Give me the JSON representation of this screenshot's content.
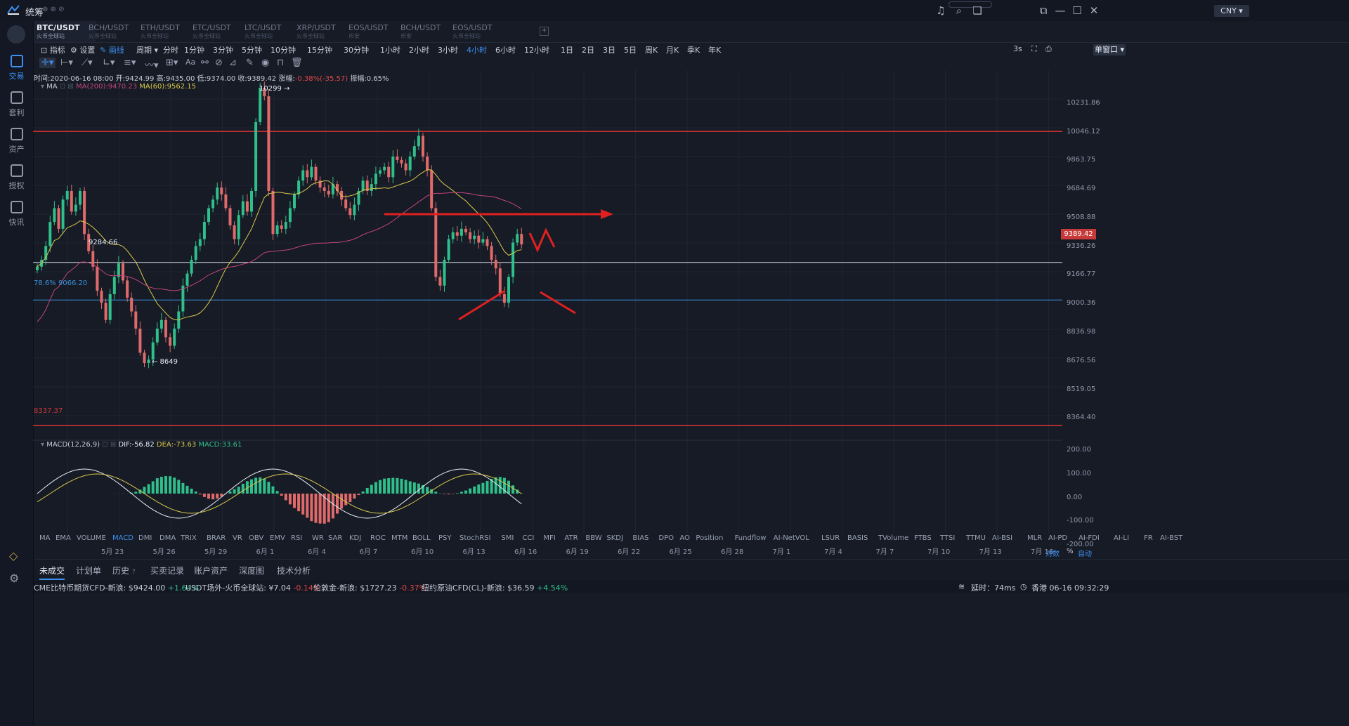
{
  "app": {
    "name": "统筹",
    "currency": "CNY"
  },
  "nav": [
    {
      "label": "交易",
      "icon": "trade-icon",
      "active": true
    },
    {
      "label": "套利",
      "icon": "arbitrage-icon"
    },
    {
      "label": "资产",
      "icon": "wallet-icon"
    },
    {
      "label": "授权",
      "icon": "key-icon"
    },
    {
      "label": "快讯",
      "icon": "news-icon"
    }
  ],
  "symbols": [
    {
      "name": "BTC/USDT",
      "sub": "火币全球站",
      "active": true
    },
    {
      "name": "BCH/USDT",
      "sub": "火币全球站"
    },
    {
      "name": "ETH/USDT",
      "sub": "火币全球站"
    },
    {
      "name": "ETC/USDT",
      "sub": "火币全球站"
    },
    {
      "name": "LTC/USDT",
      "sub": "火币全球站"
    },
    {
      "name": "XRP/USDT",
      "sub": "火币全球站"
    },
    {
      "name": "EOS/USDT",
      "sub": "币安"
    },
    {
      "name": "BCH/USDT",
      "sub": "币安"
    },
    {
      "name": "EOS/USDT",
      "sub": "火币全球站"
    }
  ],
  "toolbar": {
    "indicator": "指标",
    "settings": "设置",
    "draw": "画线",
    "period": "周期",
    "periods": [
      "分时",
      "1分钟",
      "3分钟",
      "5分钟",
      "10分钟",
      "15分钟",
      "30分钟",
      "1小时",
      "2小时",
      "3小时",
      "4小时",
      "6小时",
      "12小时",
      "1日",
      "2日",
      "3日",
      "5日",
      "周K",
      "月K",
      "季K",
      "年K"
    ],
    "active_period": "4小时",
    "refresh": "3s",
    "window_mode": "单窗口"
  },
  "info": {
    "time": "时间:2020-06-16 08:00",
    "open": "开:9424.99",
    "high": "高:9435.00",
    "low": "低:9374.00",
    "close": "收:9389.42",
    "change_label": "涨幅:",
    "change": "-0.38%(-35.57)",
    "amplitude": "振幅:0.65%"
  },
  "ma": {
    "name": "MA",
    "ma200": "MA(200):9470.23",
    "ma60": "MA(60):9562.15"
  },
  "macd": {
    "name": "MACD(12,26,9)",
    "dif": "DIF:-56.82",
    "dea": "DEA:-73.63",
    "macd": "MACD:33.61"
  },
  "annotations": {
    "high": "10299 →",
    "low": "← 8649",
    "level1": "9284.66",
    "fib": "78.6% 9066.20",
    "bottom": "8337.37"
  },
  "price_axis": [
    "10231.86",
    "10046.12",
    "9863.75",
    "9684.69",
    "9508.88",
    "9336.26",
    "9166.77",
    "9000.36",
    "8836.98",
    "8676.56",
    "8519.05",
    "8364.40"
  ],
  "current_price": "9389.42",
  "macd_axis": [
    "200.00",
    "100.00",
    "0.00",
    "-100.00",
    "-200.00"
  ],
  "indicators": [
    "MA",
    "EMA",
    "VOLUME",
    "MACD",
    "DMI",
    "DMA",
    "TRIX",
    "BRAR",
    "VR",
    "OBV",
    "EMV",
    "RSI",
    "WR",
    "SAR",
    "KDJ",
    "ROC",
    "MTM",
    "BOLL",
    "PSY",
    "StochRSI",
    "SMI",
    "CCI",
    "MFI",
    "ATR",
    "BBW",
    "SKDJ",
    "BIAS",
    "DPO",
    "AO",
    "Position",
    "Fundflow",
    "AI-NetVOL",
    "LSUR",
    "BASIS",
    "TVolume",
    "FTBS",
    "TTSI",
    "TTMU",
    "AI-BSI",
    "MLR",
    "AI-PD",
    "AI-FDI",
    "AI-LI",
    "FR",
    "AI-BST"
  ],
  "active_indicator": "MACD",
  "dates": [
    "5月 23",
    "5月 26",
    "5月 29",
    "6月 1",
    "6月 4",
    "6月 7",
    "6月 10",
    "6月 13",
    "6月 16",
    "6月 19",
    "6月 22",
    "6月 25",
    "6月 28",
    "7月 1",
    "7月 4",
    "7月 7",
    "7月 10",
    "7月 13",
    "7月 16"
  ],
  "axis_controls": {
    "log": "对数",
    "pct": "%",
    "auto": "自动"
  },
  "bottom_tabs": [
    "未成交",
    "计划单",
    "历史",
    "买卖记录",
    "账户资产",
    "深度图",
    "技术分析"
  ],
  "ticker": [
    {
      "label": "CME比特币期货CFD-新浪:",
      "price": "$9424.00",
      "chg": "+1.64%",
      "up": true
    },
    {
      "label": "USDT场外-火币全球站:",
      "price": "¥7.04",
      "chg": "-0.14%",
      "up": false
    },
    {
      "label": "伦敦金-新浪:",
      "price": "$1727.23",
      "chg": "-0.37%",
      "up": false
    },
    {
      "label": "纽约原油CFD(CL)-新浪:",
      "price": "$36.59",
      "chg": "+4.54%",
      "up": true
    }
  ],
  "status": {
    "latency": "延时：74ms",
    "clock": "香港 06-16 09:32:29"
  },
  "chart_data": {
    "type": "candlestick",
    "interval": "4小时",
    "ylim": [
      8280,
      10320
    ],
    "hlines": [
      10046,
      9284.66,
      9066.2,
      8337.37
    ],
    "closes": [
      9260,
      9300,
      9380,
      9520,
      9600,
      9480,
      9650,
      9700,
      9580,
      9620,
      9700,
      9450,
      9350,
      9260,
      9120,
      9050,
      8950,
      9100,
      9200,
      9280,
      9180,
      9080,
      9000,
      8900,
      8760,
      8700,
      8720,
      8820,
      8900,
      8950,
      8850,
      8800,
      8900,
      9000,
      9150,
      9220,
      9300,
      9380,
      9420,
      9520,
      9600,
      9650,
      9720,
      9680,
      9600,
      9500,
      9420,
      9560,
      9640,
      9580,
      9700,
      10100,
      10299,
      10250,
      9700,
      9450,
      9500,
      9480,
      9520,
      9600,
      9680,
      9760,
      9820,
      9780,
      9840,
      9760,
      9720,
      9700,
      9680,
      9740,
      9700,
      9650,
      9600,
      9560,
      9620,
      9700,
      9760,
      9700,
      9740,
      9800,
      9820,
      9840,
      9780,
      9900,
      9880,
      9860,
      9820,
      9900,
      9960,
      10020,
      9900,
      9820,
      9600,
      9200,
      9150,
      9300,
      9420,
      9460,
      9440,
      9480,
      9460,
      9420,
      9440,
      9400,
      9420,
      9380,
      9300,
      9250,
      9100,
      9050,
      9200,
      9400,
      9450,
      9389
    ]
  }
}
